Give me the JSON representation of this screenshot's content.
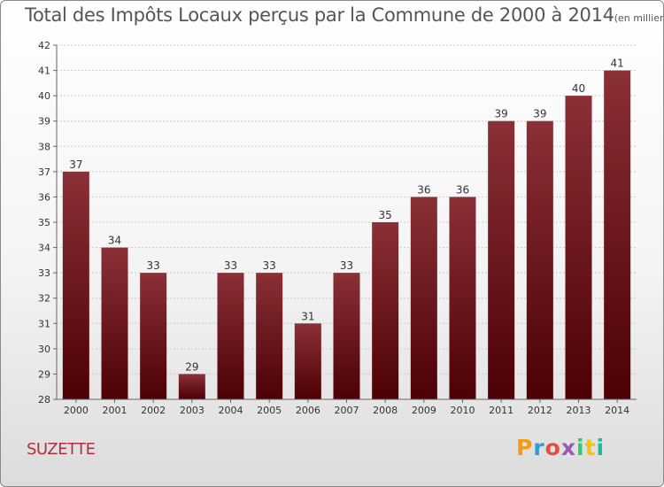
{
  "title": "Total des Impôts Locaux perçus par la Commune de 2000 à 2014",
  "subtitle": "(en milliers d'€)",
  "commune": "SUZETTE",
  "logo": "Proxiti",
  "colors": {
    "bar_top": "#8a3037",
    "bar_bottom": "#4d0004",
    "commune_text": "#b0303d",
    "axis_text": "#333333",
    "grid": "#cccccc"
  },
  "chart_data": {
    "type": "bar",
    "categories": [
      "2000",
      "2001",
      "2002",
      "2003",
      "2004",
      "2005",
      "2006",
      "2007",
      "2008",
      "2009",
      "2010",
      "2011",
      "2012",
      "2013",
      "2014"
    ],
    "values": [
      37,
      34,
      33,
      29,
      33,
      33,
      31,
      33,
      35,
      36,
      36,
      39,
      39,
      40,
      41
    ],
    "ylim": [
      28,
      42
    ],
    "yticks": [
      28,
      29,
      30,
      31,
      32,
      33,
      34,
      35,
      36,
      37,
      38,
      39,
      40,
      41,
      42
    ],
    "grid": true,
    "data_labels": true,
    "title": "Total des Impôts Locaux perçus par la Commune de 2000 à 2014",
    "xlabel": "",
    "ylabel": ""
  }
}
